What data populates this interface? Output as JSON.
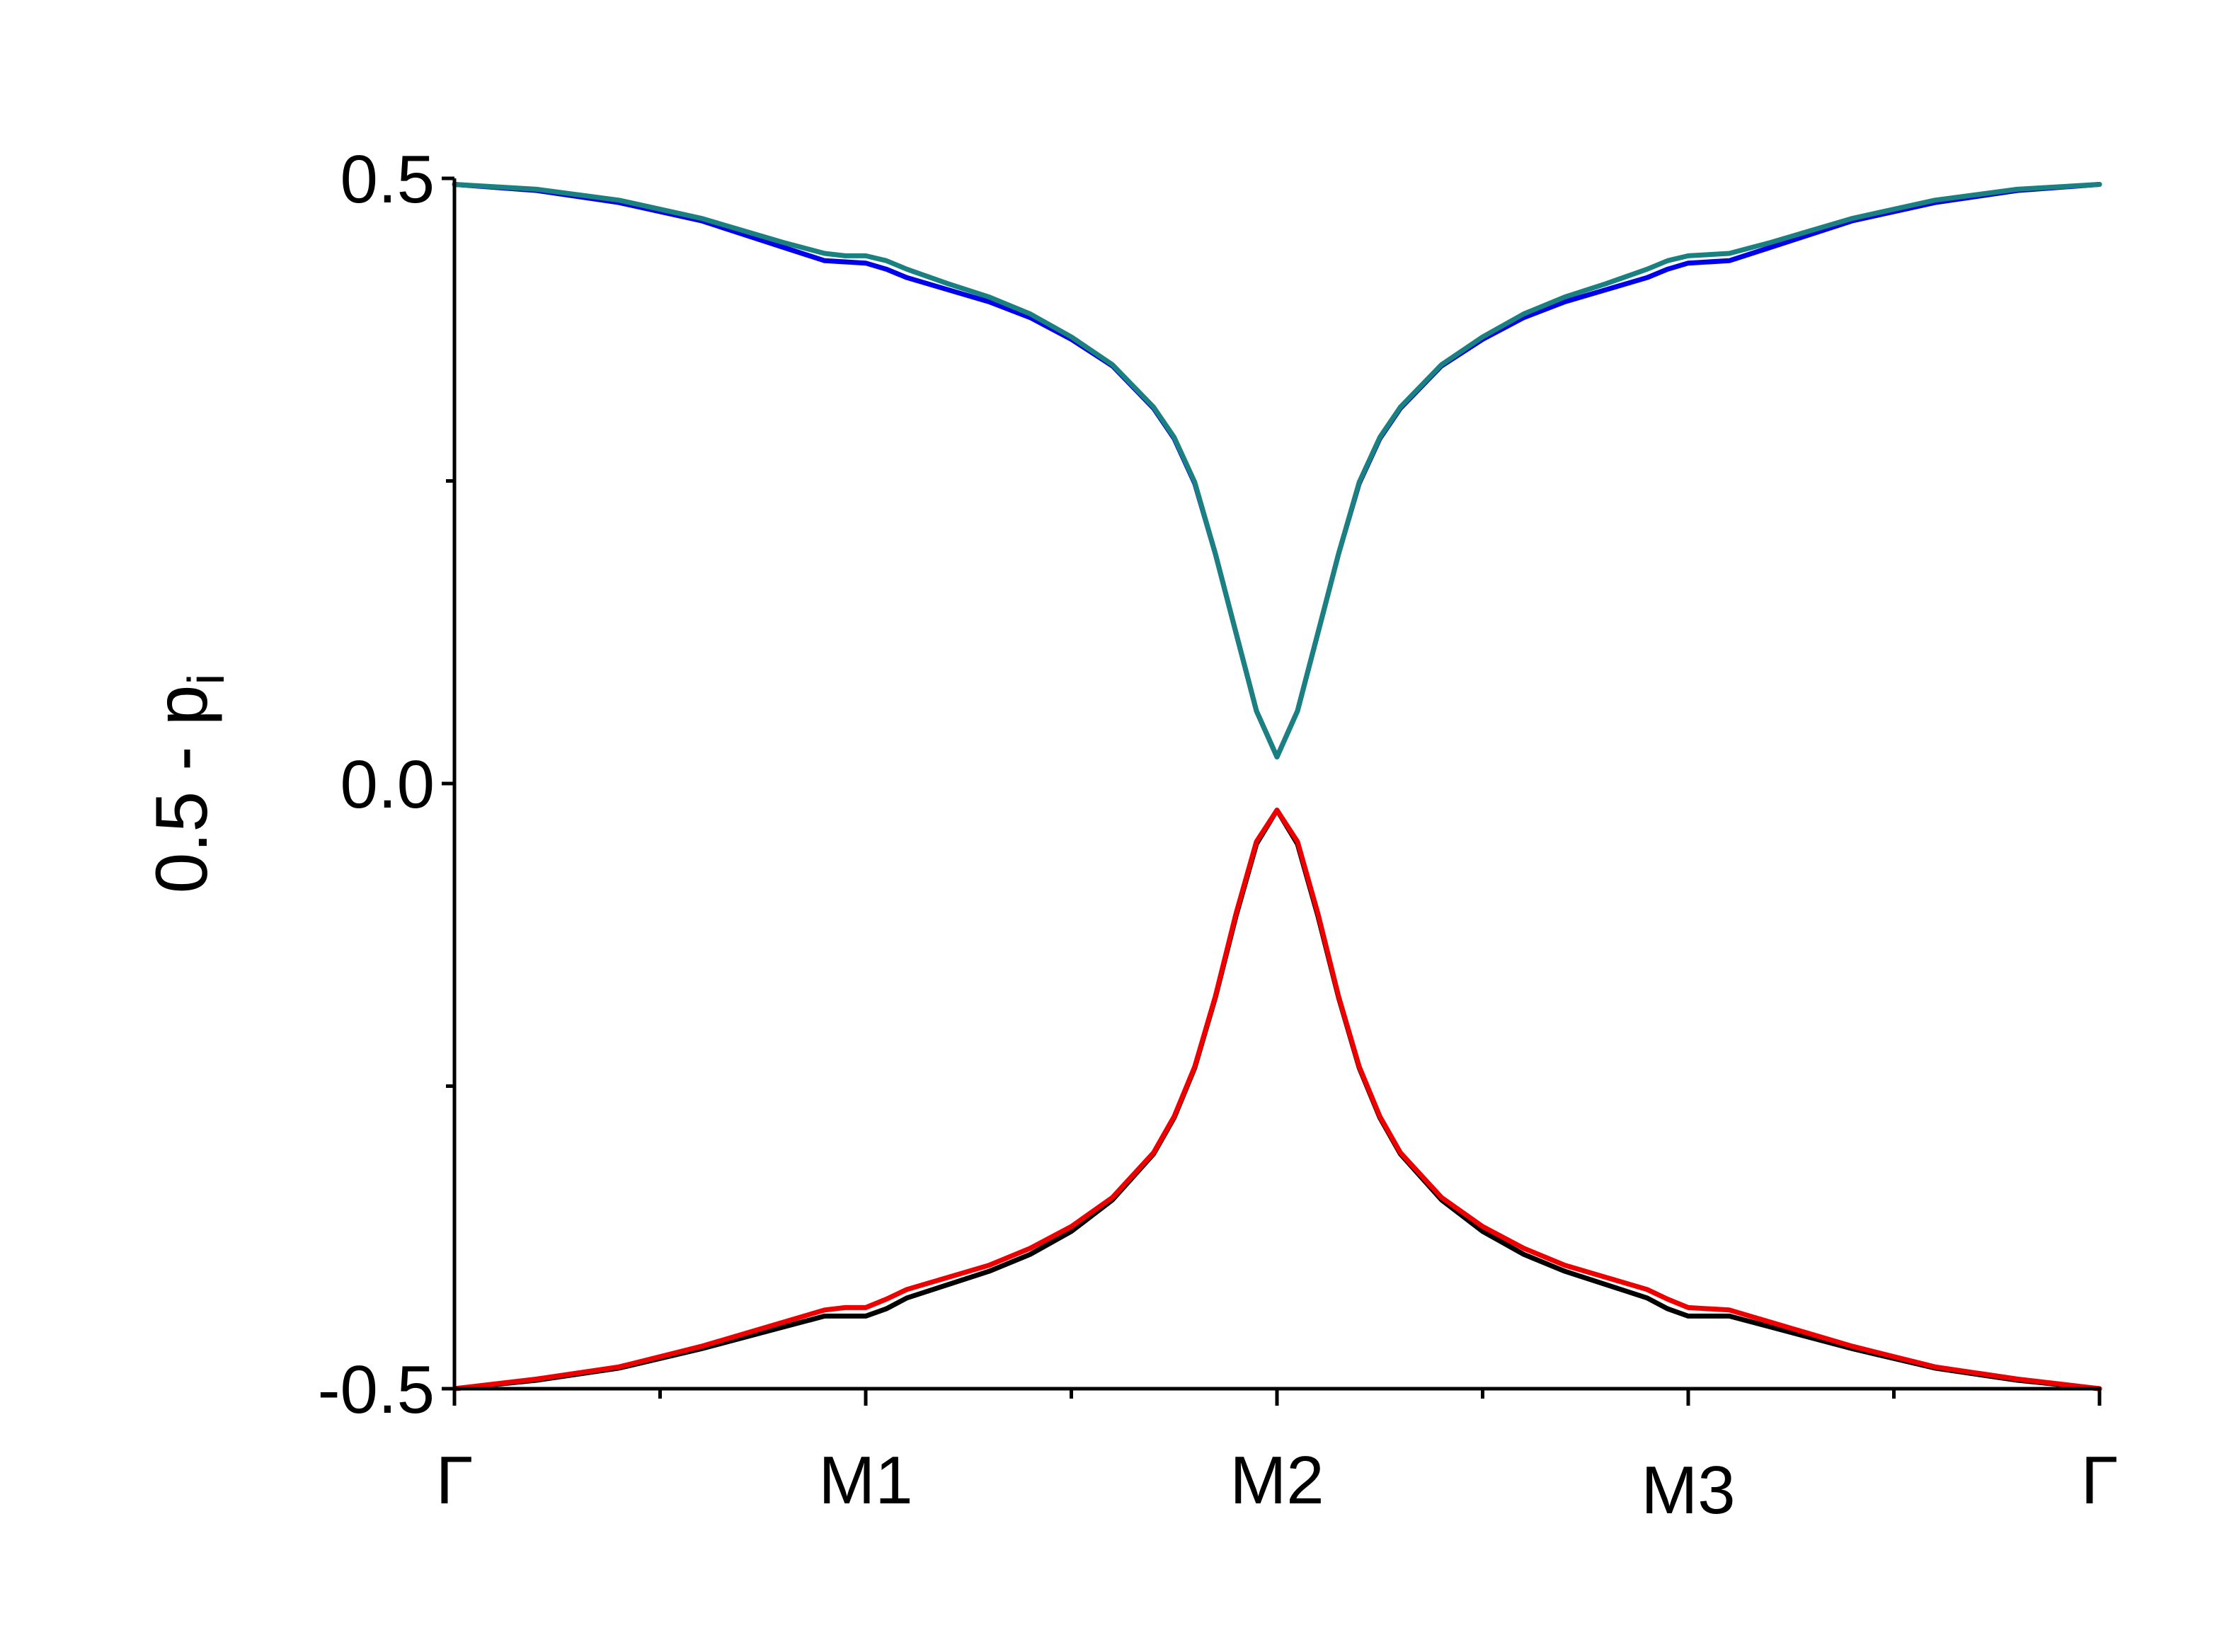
{
  "chart_data": {
    "type": "line",
    "title": "",
    "xlabel": "",
    "ylabel": {
      "main": "0.5 - p",
      "subscript": "i"
    },
    "xlim": [
      0,
      4
    ],
    "ylim": [
      -0.5,
      0.5
    ],
    "x_ticks": [
      {
        "pos": 0,
        "label": "Γ"
      },
      {
        "pos": 1,
        "label": "M1"
      },
      {
        "pos": 2,
        "label": "M2"
      },
      {
        "pos": 3,
        "label": "M3"
      },
      {
        "pos": 4,
        "label": "Γ"
      }
    ],
    "x_minor_ticks": [
      0.5,
      1.5,
      2.5,
      3.5
    ],
    "y_ticks": [
      {
        "value": 0.5,
        "label": "0.5"
      },
      {
        "value": 0.0,
        "label": "0.0"
      },
      {
        "value": -0.5,
        "label": "-0.5"
      }
    ],
    "y_minor_ticks": [
      0.25,
      -0.25
    ],
    "grid": false,
    "series": [
      {
        "color": "#0000ee",
        "x": [
          0,
          0.2,
          0.4,
          0.6,
          0.8,
          0.9,
          1.0,
          1.05,
          1.1,
          1.2,
          1.3,
          1.4,
          1.5,
          1.6,
          1.7,
          1.75,
          1.8,
          1.85,
          1.9,
          1.95,
          2.0,
          2.05,
          2.1,
          2.15,
          2.2,
          2.25,
          2.3,
          2.4,
          2.5,
          2.6,
          2.7,
          2.8,
          2.9,
          2.95,
          3.0,
          3.1,
          3.2,
          3.4,
          3.6,
          3.8,
          4.0
        ],
        "y": [
          0.495,
          0.49,
          0.48,
          0.465,
          0.443,
          0.432,
          0.43,
          0.425,
          0.418,
          0.408,
          0.398,
          0.385,
          0.367,
          0.345,
          0.31,
          0.285,
          0.248,
          0.19,
          0.125,
          0.06,
          0.022,
          0.06,
          0.125,
          0.19,
          0.248,
          0.285,
          0.31,
          0.345,
          0.367,
          0.385,
          0.398,
          0.408,
          0.418,
          0.425,
          0.43,
          0.432,
          0.443,
          0.465,
          0.48,
          0.49,
          0.495
        ]
      },
      {
        "color": "#1a8080",
        "x": [
          0,
          0.2,
          0.4,
          0.6,
          0.8,
          0.9,
          0.95,
          1.0,
          1.05,
          1.1,
          1.2,
          1.3,
          1.4,
          1.5,
          1.6,
          1.7,
          1.75,
          1.8,
          1.85,
          1.9,
          1.95,
          2.0,
          2.05,
          2.1,
          2.15,
          2.2,
          2.25,
          2.3,
          2.4,
          2.5,
          2.6,
          2.7,
          2.8,
          2.9,
          2.95,
          3.0,
          3.1,
          3.2,
          3.4,
          3.6,
          3.8,
          4.0
        ],
        "y": [
          0.495,
          0.491,
          0.482,
          0.467,
          0.447,
          0.438,
          0.436,
          0.436,
          0.432,
          0.425,
          0.413,
          0.402,
          0.388,
          0.369,
          0.346,
          0.311,
          0.286,
          0.249,
          0.19,
          0.125,
          0.06,
          0.022,
          0.06,
          0.125,
          0.19,
          0.249,
          0.286,
          0.311,
          0.346,
          0.369,
          0.388,
          0.402,
          0.413,
          0.425,
          0.432,
          0.436,
          0.438,
          0.447,
          0.467,
          0.482,
          0.491,
          0.495
        ]
      },
      {
        "color": "#000000",
        "x": [
          0,
          0.2,
          0.4,
          0.6,
          0.8,
          0.9,
          1.0,
          1.05,
          1.1,
          1.2,
          1.3,
          1.4,
          1.5,
          1.6,
          1.7,
          1.75,
          1.8,
          1.85,
          1.9,
          1.95,
          2.0,
          2.05,
          2.1,
          2.15,
          2.2,
          2.25,
          2.3,
          2.4,
          2.5,
          2.6,
          2.7,
          2.8,
          2.9,
          2.95,
          3.0,
          3.1,
          3.2,
          3.4,
          3.6,
          3.8,
          4.0
        ],
        "y": [
          -0.5,
          -0.493,
          -0.483,
          -0.467,
          -0.449,
          -0.44,
          -0.44,
          -0.434,
          -0.425,
          -0.414,
          -0.403,
          -0.389,
          -0.37,
          -0.344,
          -0.306,
          -0.276,
          -0.235,
          -0.177,
          -0.11,
          -0.05,
          -0.022,
          -0.05,
          -0.11,
          -0.177,
          -0.235,
          -0.276,
          -0.306,
          -0.344,
          -0.37,
          -0.389,
          -0.403,
          -0.414,
          -0.425,
          -0.434,
          -0.44,
          -0.44,
          -0.449,
          -0.467,
          -0.483,
          -0.493,
          -0.5
        ]
      },
      {
        "color": "#ee0000",
        "x": [
          0,
          0.2,
          0.4,
          0.6,
          0.8,
          0.9,
          0.95,
          1.0,
          1.05,
          1.1,
          1.2,
          1.3,
          1.4,
          1.5,
          1.6,
          1.7,
          1.75,
          1.8,
          1.85,
          1.9,
          1.95,
          2.0,
          2.05,
          2.1,
          2.15,
          2.2,
          2.25,
          2.3,
          2.4,
          2.5,
          2.6,
          2.7,
          2.8,
          2.9,
          2.95,
          3.0,
          3.1,
          3.2,
          3.4,
          3.6,
          3.8,
          4.0
        ],
        "y": [
          -0.5,
          -0.492,
          -0.482,
          -0.465,
          -0.445,
          -0.435,
          -0.433,
          -0.433,
          -0.426,
          -0.418,
          -0.408,
          -0.398,
          -0.384,
          -0.366,
          -0.342,
          -0.305,
          -0.275,
          -0.234,
          -0.176,
          -0.108,
          -0.048,
          -0.022,
          -0.048,
          -0.108,
          -0.176,
          -0.234,
          -0.275,
          -0.305,
          -0.342,
          -0.366,
          -0.384,
          -0.398,
          -0.408,
          -0.418,
          -0.426,
          -0.433,
          -0.435,
          -0.445,
          -0.465,
          -0.482,
          -0.492,
          -0.5
        ]
      }
    ]
  }
}
